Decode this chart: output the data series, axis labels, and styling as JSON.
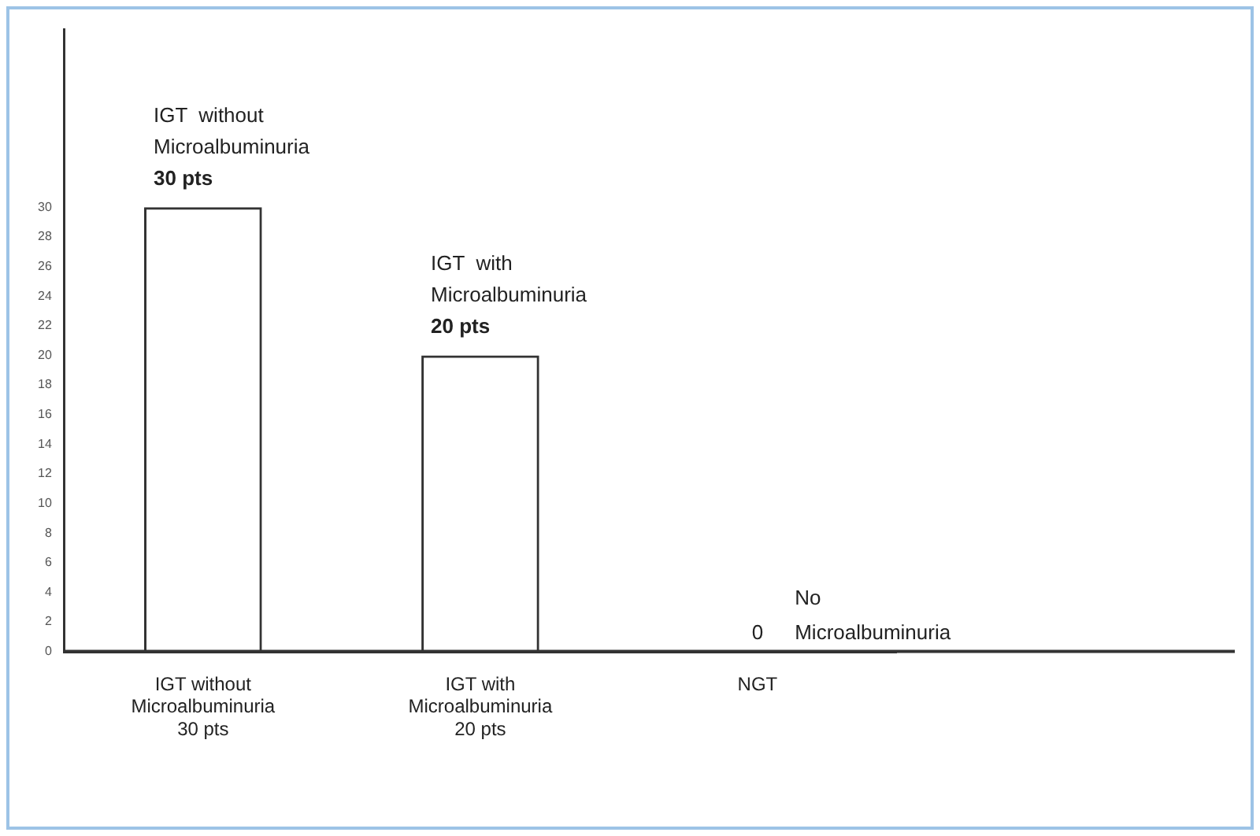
{
  "chart_data": {
    "type": "bar",
    "categories": [
      "IGT without\nMicroalbuminuria\n30 pts",
      "IGT with\nMicroalbuminuria\n20 pts",
      "NGT"
    ],
    "values": [
      30,
      20,
      0
    ],
    "color": "#333333",
    "value_labels": [
      "IGT  without\nMicroalbuminuria\n30 pts",
      "IGT  with\nMicroalbuminuria\n20 pts",
      "0"
    ],
    "annotations": [
      "No\nMicroalbuminuria"
    ],
    "ylim": [
      0,
      42
    ],
    "yticks": [
      0,
      2,
      4,
      6,
      8,
      10,
      12,
      14,
      16,
      18,
      20,
      22,
      24,
      26,
      28,
      30
    ],
    "grid": false,
    "legend": false
  }
}
